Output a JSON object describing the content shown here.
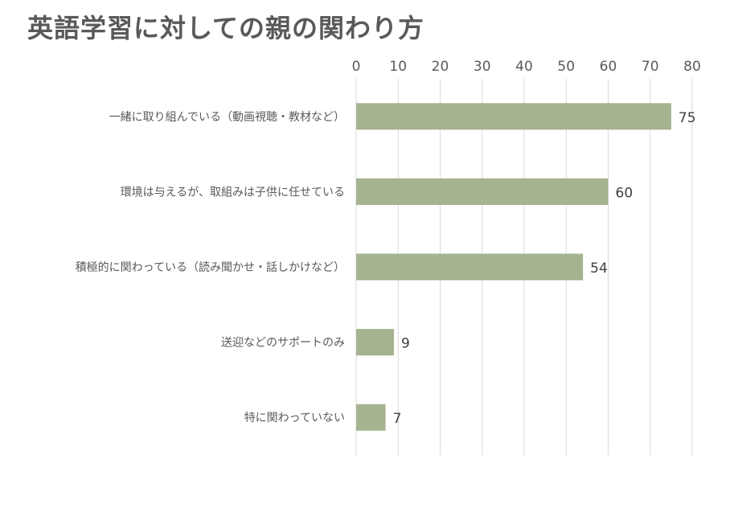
{
  "chart_data": {
    "type": "bar",
    "orientation": "horizontal",
    "title": "英語学習に対しての親の関わり方",
    "xlabel": "",
    "ylabel": "",
    "xlim": [
      0,
      80
    ],
    "x_ticks": [
      0,
      10,
      20,
      30,
      40,
      50,
      60,
      70,
      80
    ],
    "x_axis_position": "top",
    "grid": true,
    "legend": "none",
    "categories": [
      "一緒に取り組んでいる（動画視聴・教材など）",
      "環境は与えるが、取組みは子供に任せている",
      "積極的に関わっている（読み聞かせ・話しかけなど）",
      "送迎などのサポートのみ",
      "特に関わっていない"
    ],
    "values": [
      75,
      60,
      54,
      9,
      7
    ],
    "data_labels": [
      "75",
      "60",
      "54",
      "9",
      "7"
    ],
    "colors": {
      "bar": "#a5b390",
      "grid": "#d9d9d9",
      "title": "#595959",
      "text": "#595959"
    }
  }
}
